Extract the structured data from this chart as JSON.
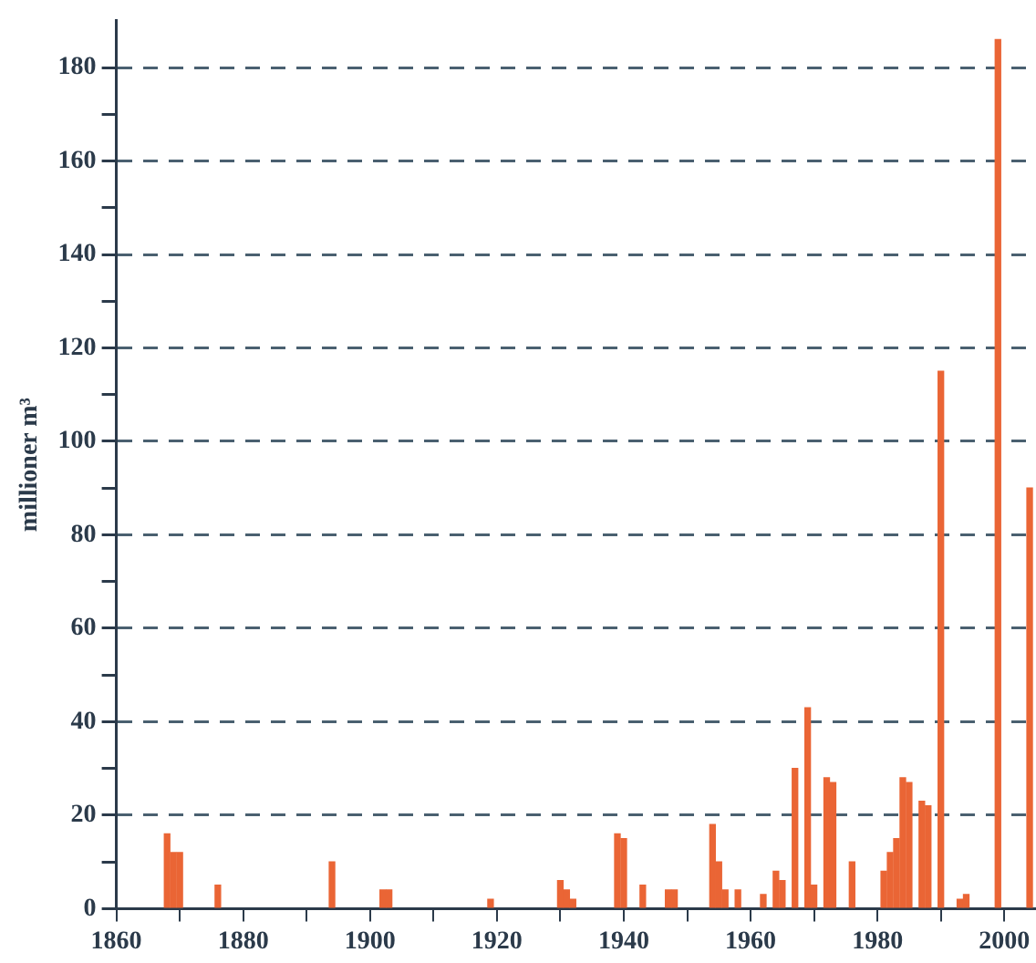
{
  "chart_data": {
    "type": "bar",
    "ylabel": "millioner m³",
    "x": [
      1868,
      1869,
      1870,
      1876,
      1894,
      1902,
      1903,
      1919,
      1930,
      1931,
      1932,
      1939,
      1940,
      1943,
      1947,
      1948,
      1954,
      1955,
      1956,
      1958,
      1962,
      1964,
      1965,
      1967,
      1969,
      1970,
      1972,
      1973,
      1976,
      1981,
      1982,
      1983,
      1984,
      1985,
      1987,
      1988,
      1990,
      1993,
      1994,
      1999,
      2004
    ],
    "values": [
      16,
      12,
      12,
      5,
      10,
      4,
      4,
      2,
      6,
      4,
      2,
      16,
      15,
      5,
      4,
      4,
      18,
      10,
      4,
      4,
      3,
      8,
      6,
      30,
      43,
      5,
      28,
      27,
      10,
      8,
      12,
      15,
      28,
      27,
      23,
      22,
      115,
      2,
      3,
      186,
      90
    ],
    "color": "#ea6535",
    "xlim": [
      1860,
      2005
    ],
    "xticks": [
      1860,
      {
        "value": 1870,
        "label": null
      },
      1880,
      {
        "value": 1890,
        "label": null
      },
      1900,
      {
        "value": 1910,
        "label": null
      },
      1920,
      {
        "value": 1930,
        "label": null
      },
      1940,
      {
        "value": 1950,
        "label": null
      },
      1960,
      {
        "value": 1970,
        "label": null
      },
      1980,
      {
        "value": 1990,
        "label": null
      },
      2000
    ],
    "ylim": [
      0,
      190
    ],
    "yticks": [
      0,
      {
        "value": 10,
        "label": null
      },
      20,
      {
        "value": 30,
        "label": null
      },
      40,
      {
        "value": 50,
        "label": null
      },
      60,
      {
        "value": 70,
        "label": null
      },
      80,
      {
        "value": 90,
        "label": null
      },
      100,
      {
        "value": 110,
        "label": null
      },
      120,
      {
        "value": 130,
        "label": null
      },
      140,
      {
        "value": 150,
        "label": null
      },
      160,
      {
        "value": 170,
        "label": null
      },
      180
    ],
    "grid": "y"
  }
}
